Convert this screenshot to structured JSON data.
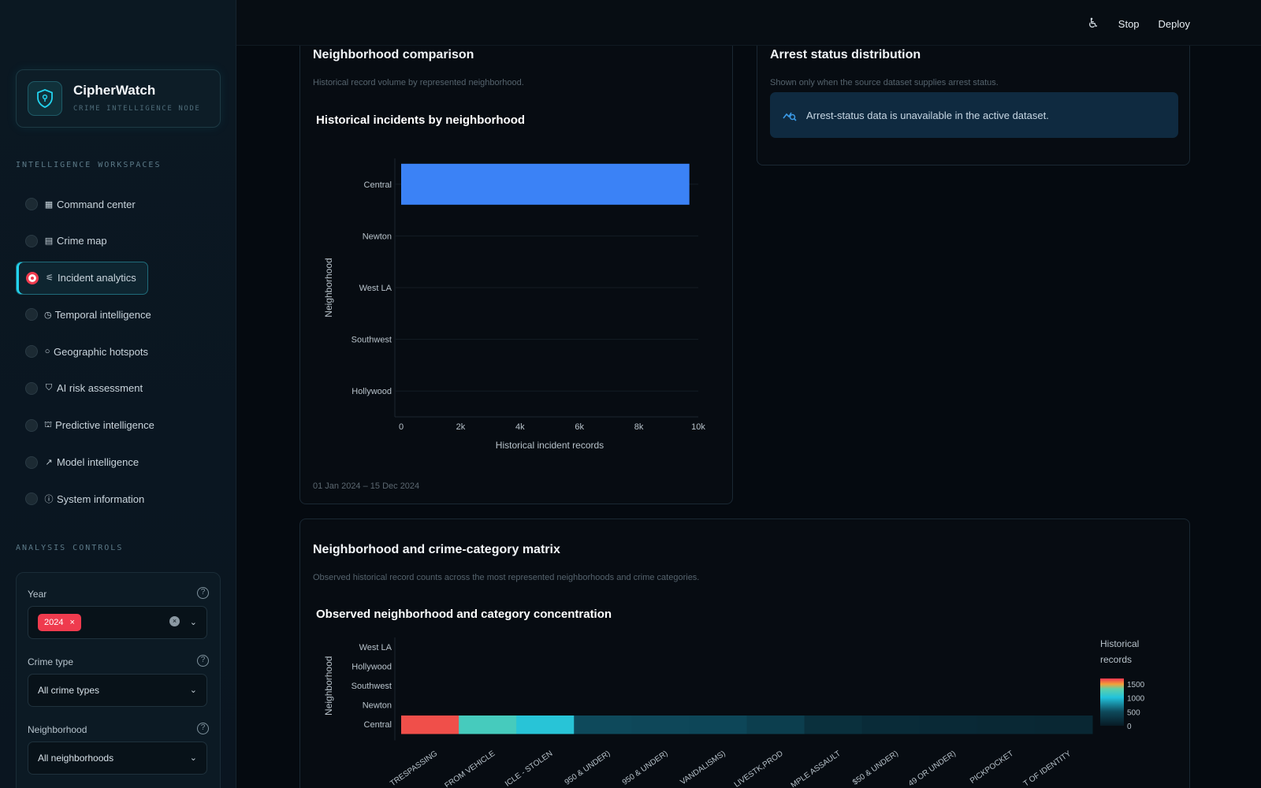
{
  "brand": {
    "name": "CipherWatch",
    "subtitle": "CRIME INTELLIGENCE NODE"
  },
  "sidebar": {
    "workspaces_label": "INTELLIGENCE WORKSPACES",
    "items": [
      {
        "icon": "▦",
        "label": "Command center"
      },
      {
        "icon": "▤",
        "label": "Crime map"
      },
      {
        "icon": "⚟",
        "label": "Incident analytics"
      },
      {
        "icon": "◷",
        "label": "Temporal intelligence"
      },
      {
        "icon": "○",
        "label": "Geographic hotspots"
      },
      {
        "icon": "⛉",
        "label": "AI risk assessment"
      },
      {
        "icon": "⛫",
        "label": "Predictive intelligence"
      },
      {
        "icon": "↗",
        "label": "Model intelligence"
      },
      {
        "icon": "ⓘ",
        "label": "System information"
      }
    ],
    "active_index": 2,
    "controls_label": "ANALYSIS CONTROLS",
    "controls": {
      "year_label": "Year",
      "year_tag": "2024",
      "crime_type_label": "Crime type",
      "crime_type_value": "All crime types",
      "neighborhood_label": "Neighborhood",
      "neighborhood_value": "All neighborhoods"
    }
  },
  "topbar": {
    "stop_label": "Stop",
    "deploy_label": "Deploy"
  },
  "comparison": {
    "title": "Neighborhood comparison",
    "desc": "Historical record volume by represented neighborhood.",
    "chart_title": "Historical incidents by neighborhood",
    "footnote": "01 Jan 2024 – 15 Dec 2024"
  },
  "arrest": {
    "title": "Arrest status distribution",
    "desc": "Shown only when the source dataset supplies arrest status.",
    "info": "Arrest-status data is unavailable in the active dataset."
  },
  "matrix": {
    "title": "Neighborhood and crime-category matrix",
    "desc": "Observed historical record counts across the most represented neighborhoods and crime categories.",
    "chart_title": "Observed neighborhood and category concentration"
  },
  "chart_data": [
    {
      "type": "bar",
      "orientation": "horizontal",
      "title": "Historical incidents by neighborhood",
      "categories": [
        "Central",
        "Newton",
        "West LA",
        "Southwest",
        "Hollywood"
      ],
      "values": [
        9700,
        0,
        0,
        0,
        0
      ],
      "xlabel": "Historical incident records",
      "ylabel": "Neighborhood",
      "xlim": [
        0,
        10000
      ],
      "xticks": [
        "0",
        "2k",
        "4k",
        "6k",
        "8k",
        "10k"
      ],
      "color": "#3b82f6"
    },
    {
      "type": "heatmap",
      "title": "Observed neighborhood and category concentration",
      "y_categories": [
        "West LA",
        "Hollywood",
        "Southwest",
        "Newton",
        "Central"
      ],
      "x_categories": [
        "TRESPASSING",
        "FROM VEHICLE",
        "ICLE - STOLEN",
        "950 & UNDER)",
        "950 & UNDER)",
        "VANDALISMS)",
        "LIVESTK,PROD",
        "MPLE ASSAULT",
        "$50 & UNDER)",
        "49 OR UNDER)",
        "PICKPOCKET",
        "T OF IDENTITY"
      ],
      "values": [
        [
          0,
          0,
          0,
          0,
          0,
          0,
          0,
          0,
          0,
          0,
          0,
          0
        ],
        [
          0,
          0,
          0,
          0,
          0,
          0,
          0,
          0,
          0,
          0,
          0,
          0
        ],
        [
          0,
          0,
          0,
          0,
          0,
          0,
          0,
          0,
          0,
          0,
          0,
          0
        ],
        [
          0,
          0,
          0,
          0,
          0,
          0,
          0,
          0,
          0,
          0,
          0,
          0
        ],
        [
          1650,
          1200,
          1050,
          500,
          480,
          470,
          380,
          230,
          180,
          160,
          150,
          140
        ]
      ],
      "ylabel": "Neighborhood",
      "colorbar_title": "Historical records",
      "colorbar_ticks": [
        "1500",
        "1000",
        "500",
        "0"
      ],
      "colorbar_range": [
        0,
        1700
      ]
    }
  ]
}
